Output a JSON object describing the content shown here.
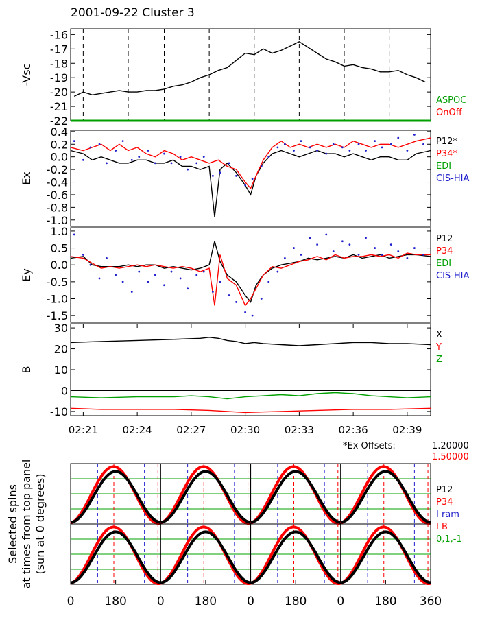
{
  "title": "2001-09-22 Cluster 3",
  "colors": {
    "black": "#000000",
    "red": "#ff0000",
    "green": "#00a000",
    "blue": "#2020cc"
  },
  "chart_data": [
    {
      "type": "line",
      "ylabel": "-Vsc",
      "ylim": [
        -22,
        -15.6
      ],
      "yticks": [
        "-16",
        "-17",
        "-18",
        "-19",
        "-20",
        "-21",
        "-22"
      ],
      "ytick_values": [
        -16,
        -17,
        -18,
        -19,
        -20,
        -21,
        -22
      ],
      "legend": [
        {
          "label": "ASPOC",
          "color": "#00a000"
        },
        {
          "label": "OnOff",
          "color": "#ff0000"
        }
      ],
      "series": [
        {
          "color": "#000000",
          "x": [
            20.5,
            21,
            21.5,
            22,
            22.5,
            23,
            23.5,
            24,
            24.5,
            25,
            25.5,
            26,
            26.5,
            27,
            27.5,
            28,
            28.5,
            29,
            29.5,
            30,
            30.5,
            31,
            31.5,
            32,
            32.5,
            33,
            33.5,
            34,
            34.5,
            35,
            35.5,
            36,
            36.5,
            37,
            37.5,
            38,
            38.5,
            39,
            39.5,
            40
          ],
          "values": [
            -20.3,
            -20.0,
            -20.2,
            -20.1,
            -20.0,
            -19.9,
            -20.0,
            -20.0,
            -19.9,
            -19.9,
            -19.8,
            -19.6,
            -19.5,
            -19.3,
            -19.0,
            -18.8,
            -18.5,
            -18.3,
            -17.8,
            -17.3,
            -17.4,
            -17.0,
            -17.3,
            -17.1,
            -16.8,
            -16.5,
            -16.9,
            -17.3,
            -17.7,
            -17.9,
            -18.2,
            -18.1,
            -18.3,
            -18.4,
            -18.6,
            -18.6,
            -18.5,
            -18.8,
            -19.0,
            -19.3
          ]
        },
        {
          "color": "#00a000",
          "x": [
            20.3,
            40.3
          ],
          "values": [
            -22,
            -22
          ]
        }
      ]
    },
    {
      "type": "line",
      "ylabel": "Ex",
      "ylim": [
        -1.1,
        0.42
      ],
      "yticks": [
        "0.4",
        "0.2",
        "0.0",
        "-0.2",
        "-0.4",
        "-0.6",
        "-0.8",
        "-1.0"
      ],
      "ytick_values": [
        0.4,
        0.2,
        0.0,
        -0.2,
        -0.4,
        -0.6,
        -0.8,
        -1.0
      ],
      "legend": [
        {
          "label": "P12*",
          "color": "#000000"
        },
        {
          "label": "P34*",
          "color": "#ff0000"
        },
        {
          "label": "EDI",
          "color": "#00a000"
        },
        {
          "label": "CIS-HIA",
          "color": "#2020cc"
        }
      ],
      "series": [
        {
          "color": "#000000",
          "x": [
            20.3,
            21,
            21.5,
            22,
            22.5,
            23,
            23.5,
            24,
            24.5,
            25,
            25.5,
            26,
            26.5,
            27,
            27.5,
            28,
            28.3,
            28.6,
            29,
            29.5,
            30,
            30.3,
            30.6,
            31,
            31.5,
            32,
            32.5,
            33,
            33.5,
            34,
            34.5,
            35,
            35.5,
            36,
            36.5,
            37,
            37.5,
            38,
            38.5,
            39,
            39.5,
            40.3
          ],
          "values": [
            0.1,
            0.05,
            -0.05,
            0.0,
            -0.05,
            -0.1,
            -0.1,
            -0.05,
            -0.05,
            -0.1,
            -0.1,
            -0.05,
            -0.15,
            -0.15,
            -0.2,
            -0.15,
            -0.95,
            -0.2,
            -0.1,
            -0.25,
            -0.45,
            -0.6,
            -0.3,
            -0.1,
            0.05,
            0.1,
            0.05,
            0.0,
            0.05,
            0.1,
            0.05,
            0.05,
            0.0,
            0.05,
            0.0,
            -0.05,
            0.0,
            0.0,
            -0.05,
            -0.05,
            0.05,
            0.1
          ]
        },
        {
          "color": "#ff0000",
          "x": [
            20.3,
            21,
            21.5,
            22,
            22.5,
            23,
            23.5,
            24,
            24.5,
            25,
            25.5,
            26,
            26.5,
            27,
            27.5,
            28,
            28.5,
            29,
            29.5,
            30,
            30.3,
            30.6,
            31,
            31.5,
            32,
            32.5,
            33,
            33.5,
            34,
            34.5,
            35,
            35.5,
            36,
            36.5,
            37,
            37.5,
            38,
            38.5,
            39,
            39.5,
            40.3
          ],
          "values": [
            0.15,
            0.1,
            0.15,
            0.2,
            0.1,
            0.2,
            0.1,
            0.15,
            0.05,
            0.0,
            0.1,
            0.05,
            -0.05,
            0.0,
            -0.05,
            -0.1,
            -0.05,
            -0.15,
            -0.2,
            -0.4,
            -0.5,
            -0.3,
            -0.05,
            0.15,
            0.25,
            0.15,
            0.2,
            0.15,
            0.2,
            0.15,
            0.2,
            0.15,
            0.25,
            0.2,
            0.15,
            0.2,
            0.2,
            0.15,
            0.2,
            0.25,
            0.3
          ]
        },
        {
          "color": "#2020cc",
          "dots": true,
          "x": [
            20.5,
            21.0,
            21.4,
            21.9,
            22.3,
            22.8,
            23.2,
            23.7,
            24.1,
            24.6,
            25.0,
            25.5,
            25.9,
            26.4,
            26.8,
            27.3,
            27.7,
            28.2,
            28.6,
            29.1,
            29.5,
            30.0,
            30.4,
            30.9,
            31.3,
            31.8,
            32.2,
            32.7,
            33.1,
            33.6,
            34.0,
            34.5,
            34.9,
            35.4,
            35.8,
            36.3,
            36.7,
            37.2,
            37.6,
            38.1,
            38.5,
            39.0,
            39.4,
            39.9
          ],
          "values": [
            0.25,
            -0.05,
            0.15,
            0.2,
            -0.1,
            0.1,
            0.25,
            -0.05,
            0.0,
            0.1,
            -0.1,
            0.05,
            -0.1,
            0.0,
            -0.2,
            -0.1,
            0.0,
            -0.3,
            -0.25,
            -0.1,
            -0.3,
            -0.45,
            -0.35,
            -0.15,
            0.0,
            0.15,
            0.2,
            0.1,
            0.25,
            0.15,
            0.1,
            0.05,
            0.2,
            0.15,
            0.1,
            0.2,
            0.1,
            0.25,
            0.15,
            0.2,
            0.3,
            0.1,
            0.35,
            0.2
          ]
        }
      ]
    },
    {
      "type": "line",
      "ylabel": "Ey",
      "ylim": [
        -1.7,
        1.1
      ],
      "yticks": [
        "1.0",
        "0.5",
        "0.0",
        "-0.5",
        "-1.0",
        "-1.5"
      ],
      "ytick_values": [
        1.0,
        0.5,
        0.0,
        -0.5,
        -1.0,
        -1.5
      ],
      "legend": [
        {
          "label": "P12",
          "color": "#000000"
        },
        {
          "label": "P34",
          "color": "#ff0000"
        },
        {
          "label": "EDI",
          "color": "#00a000"
        },
        {
          "label": "CIS-HIA",
          "color": "#2020cc"
        }
      ],
      "series": [
        {
          "color": "#000000",
          "x": [
            20.3,
            21,
            21.5,
            22,
            22.5,
            23,
            23.5,
            24,
            24.5,
            25,
            25.5,
            26,
            26.5,
            27,
            27.5,
            28,
            28.3,
            28.6,
            29,
            29.5,
            30,
            30.3,
            30.6,
            31,
            31.5,
            32,
            32.5,
            33,
            33.5,
            34,
            34.5,
            35,
            35.5,
            36,
            36.5,
            37,
            37.5,
            38,
            38.5,
            39,
            39.5,
            40.3
          ],
          "values": [
            0.2,
            0.25,
            0.0,
            -0.05,
            -0.05,
            -0.05,
            0.0,
            -0.05,
            0.0,
            0.0,
            -0.1,
            -0.05,
            -0.1,
            -0.15,
            -0.1,
            0.0,
            0.7,
            0.1,
            -0.3,
            -0.5,
            -0.9,
            -1.1,
            -0.6,
            -0.3,
            -0.1,
            0.0,
            0.05,
            0.1,
            0.2,
            0.15,
            0.2,
            0.25,
            0.2,
            0.3,
            0.2,
            0.25,
            0.3,
            0.2,
            0.25,
            0.3,
            0.3,
            0.25
          ]
        },
        {
          "color": "#ff0000",
          "x": [
            20.3,
            21,
            21.5,
            22,
            22.5,
            23,
            23.5,
            24,
            24.5,
            25,
            25.5,
            26,
            26.5,
            27,
            27.5,
            28,
            28.3,
            28.6,
            29,
            29.5,
            30,
            30.3,
            30.6,
            31,
            31.5,
            32,
            32.5,
            33,
            33.5,
            34,
            34.5,
            35,
            35.5,
            36,
            36.5,
            37,
            37.5,
            38,
            38.5,
            39,
            39.5,
            40.3
          ],
          "values": [
            0.25,
            0.2,
            0.05,
            -0.1,
            -0.05,
            -0.1,
            -0.05,
            0.0,
            -0.05,
            0.0,
            -0.05,
            -0.1,
            -0.05,
            -0.1,
            -0.2,
            -0.1,
            -1.2,
            0.3,
            -0.4,
            -0.6,
            -1.2,
            -1.0,
            -0.7,
            -0.3,
            -0.05,
            -0.1,
            0.0,
            0.1,
            0.15,
            0.25,
            0.15,
            0.3,
            0.2,
            0.25,
            0.25,
            0.3,
            0.25,
            0.3,
            0.2,
            0.35,
            0.3,
            0.3
          ]
        },
        {
          "color": "#2020cc",
          "dots": true,
          "x": [
            20.5,
            21.0,
            21.4,
            21.9,
            22.3,
            22.8,
            23.2,
            23.7,
            24.1,
            24.6,
            25.0,
            25.5,
            25.9,
            26.4,
            26.8,
            27.3,
            27.7,
            28.2,
            28.6,
            29.1,
            29.5,
            30.0,
            30.4,
            30.9,
            31.3,
            31.8,
            32.2,
            32.7,
            33.1,
            33.6,
            34.0,
            34.5,
            34.9,
            35.4,
            35.8,
            36.3,
            36.7,
            37.2,
            37.6,
            38.1,
            38.5,
            39.0,
            39.4,
            39.9
          ],
          "values": [
            0.9,
            0.3,
            0.0,
            -0.4,
            0.2,
            -0.3,
            -0.5,
            -0.8,
            -0.2,
            -0.5,
            -0.3,
            -0.6,
            -0.2,
            -0.4,
            -0.7,
            -0.3,
            -0.2,
            -0.8,
            -0.5,
            -0.9,
            -1.1,
            -1.4,
            -1.5,
            -1.0,
            -0.5,
            -0.2,
            0.2,
            0.5,
            0.3,
            0.8,
            0.6,
            0.9,
            0.4,
            0.7,
            0.6,
            0.3,
            0.8,
            0.5,
            0.3,
            0.6,
            0.4,
            0.2,
            0.5,
            0.3
          ]
        }
      ]
    },
    {
      "type": "line",
      "ylabel": "B",
      "ylim": [
        -12,
        32
      ],
      "yticks": [
        "30",
        "20",
        "10",
        "0",
        "-10"
      ],
      "ytick_values": [
        30,
        20,
        10,
        0,
        -10
      ],
      "legend": [
        {
          "label": "X",
          "color": "#000000"
        },
        {
          "label": "Y",
          "color": "#ff0000"
        },
        {
          "label": "Z",
          "color": "#00a000"
        }
      ],
      "xtick_labels": [
        "02:21",
        "02:24",
        "02:27",
        "02:30",
        "02:33",
        "02:36",
        "02:39"
      ],
      "xtick_values": [
        21,
        24,
        27,
        30,
        33,
        36,
        39
      ],
      "series": [
        {
          "color": "#000000",
          "x": [
            20.3,
            22,
            24,
            26,
            27.5,
            28,
            28.5,
            29,
            29.5,
            30,
            30.5,
            31,
            32,
            33,
            34,
            35,
            36,
            37,
            38,
            39,
            40.3
          ],
          "values": [
            23,
            23.5,
            24,
            24.5,
            25,
            25.5,
            25,
            24,
            23.5,
            22.5,
            23,
            22.5,
            22,
            21.5,
            22,
            22.5,
            23,
            23,
            22.5,
            22.5,
            22
          ]
        },
        {
          "color": "#00a000",
          "x": [
            20.3,
            22,
            24,
            26,
            27,
            28,
            29,
            30,
            31,
            32,
            33,
            34,
            35,
            36,
            37,
            38,
            39,
            40.3
          ],
          "values": [
            -3,
            -3.5,
            -3,
            -3,
            -2.5,
            -3,
            -4,
            -3,
            -2.5,
            -2,
            -2.5,
            -1.5,
            -1,
            -1.5,
            -2.5,
            -3,
            -3.5,
            -3
          ]
        },
        {
          "color": "#ff0000",
          "x": [
            20.3,
            22,
            24,
            26,
            28,
            30,
            32,
            34,
            36,
            38,
            40.3
          ],
          "values": [
            -8.5,
            -9,
            -9,
            -9,
            -9.5,
            -10.5,
            -10,
            -9.5,
            -9,
            -9,
            -8.5
          ]
        }
      ]
    },
    {
      "type": "scatter",
      "ylabel": "Selected spins at times from top panel (sun at 0 degrees)",
      "ylabel_lines": [
        "Selected spins",
        "at times from top panel",
        "(sun at 0 degrees)"
      ],
      "xtick_labels": [
        "0",
        "180",
        "0",
        "180",
        "0",
        "180",
        "0",
        "180",
        "360"
      ],
      "note": "*Ex Offsets:",
      "offsets": [
        "1.20000",
        "1.50000"
      ],
      "legend": [
        {
          "label": "P12",
          "color": "#000000"
        },
        {
          "label": "P34",
          "color": "#ff0000"
        },
        {
          "label": "I ram",
          "color": "#2020cc"
        },
        {
          "label": "I B",
          "color": "#ff0000"
        },
        {
          "label": "0,1,-1",
          "color": "#00a000"
        }
      ]
    }
  ]
}
